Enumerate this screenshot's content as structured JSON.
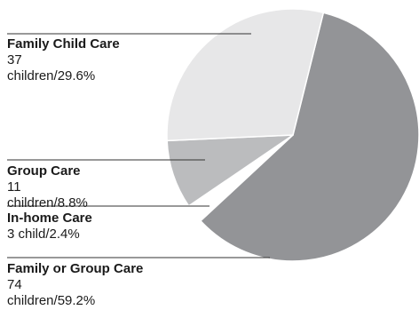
{
  "chart_data": {
    "type": "pie",
    "slices": [
      {
        "name": "Family or Group Care",
        "value_text": "74 children/59.2%",
        "count": 74,
        "percent": 59.2,
        "color": "#939497"
      },
      {
        "name": "In-home Care",
        "value_text": "3 child/2.4%",
        "count": 3,
        "percent": 2.4,
        "color": "#ffffff"
      },
      {
        "name": "Group Care",
        "value_text": "11 children/8.8%",
        "count": 11,
        "percent": 8.8,
        "color": "#bbbcbe"
      },
      {
        "name": "Family Child Care",
        "value_text": "37 children/29.6%",
        "count": 37,
        "percent": 29.6,
        "color": "#e7e7e8"
      }
    ],
    "border_color": "#ffffff",
    "leader_color": "#333333"
  }
}
